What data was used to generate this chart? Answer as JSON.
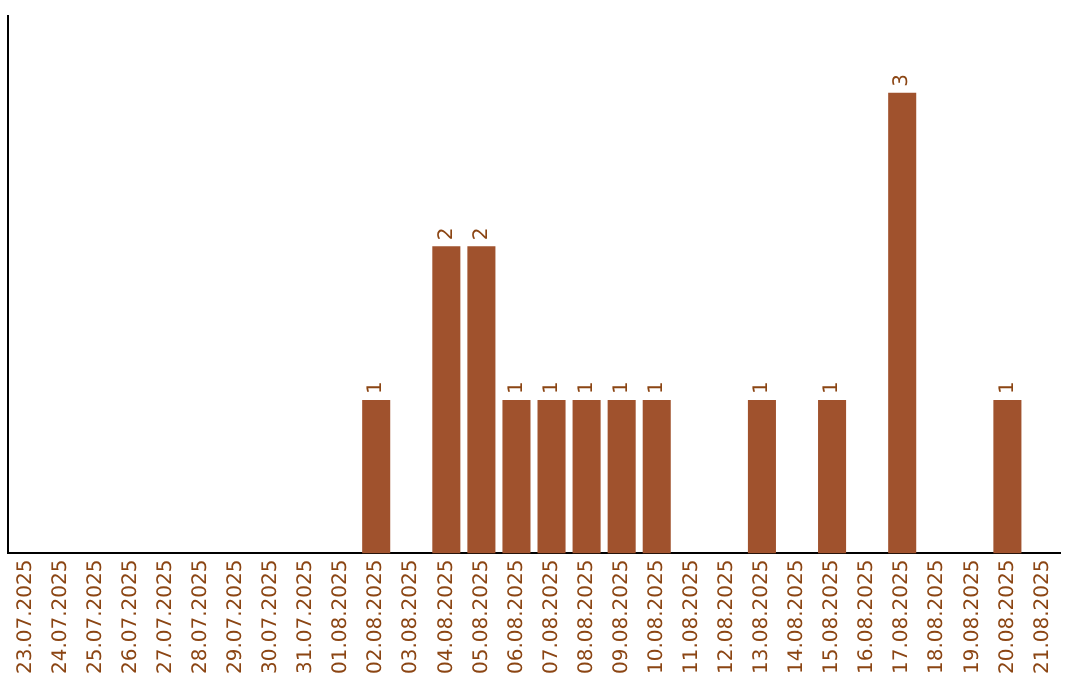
{
  "chart_data": {
    "type": "bar",
    "categories": [
      "23.07.2025",
      "24.07.2025",
      "25.07.2025",
      "26.07.2025",
      "27.07.2025",
      "28.07.2025",
      "29.07.2025",
      "30.07.2025",
      "31.07.2025",
      "01.08.2025",
      "02.08.2025",
      "03.08.2025",
      "04.08.2025",
      "05.08.2025",
      "06.08.2025",
      "07.08.2025",
      "08.08.2025",
      "09.08.2025",
      "10.08.2025",
      "11.08.2025",
      "12.08.2025",
      "13.08.2025",
      "14.08.2025",
      "15.08.2025",
      "16.08.2025",
      "17.08.2025",
      "18.08.2025",
      "19.08.2025",
      "20.08.2025",
      "21.08.2025"
    ],
    "values": [
      0,
      0,
      0,
      0,
      0,
      0,
      0,
      0,
      0,
      0,
      1,
      0,
      2,
      2,
      1,
      1,
      1,
      1,
      1,
      0,
      0,
      1,
      0,
      1,
      0,
      3,
      0,
      0,
      1,
      0
    ],
    "value_labels": [
      null,
      null,
      null,
      null,
      null,
      null,
      null,
      null,
      null,
      null,
      "1",
      null,
      "2",
      "2",
      "1",
      "1",
      "1",
      "1",
      "1",
      null,
      null,
      "1",
      null,
      "1",
      null,
      "3",
      null,
      null,
      "1",
      null
    ],
    "color": "#a0522d",
    "grid": false,
    "legend": false,
    "tick_labels": "x"
  }
}
